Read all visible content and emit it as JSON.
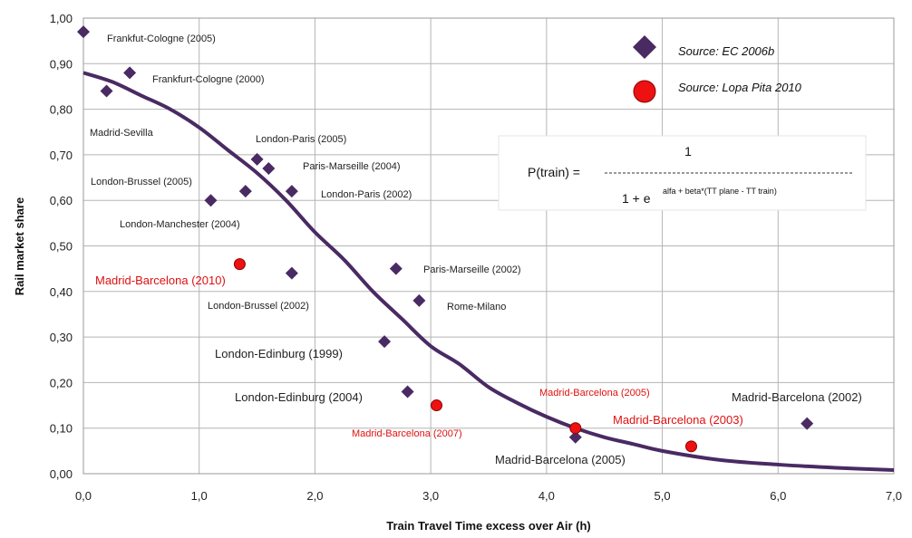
{
  "chart_data": {
    "type": "scatter",
    "title": "",
    "xlabel": "Train Travel Time excess over Air (h)",
    "ylabel": "Rail market share",
    "xlim": [
      0,
      7
    ],
    "ylim": [
      0,
      1
    ],
    "grid": true,
    "x_ticks": [
      "0,0",
      "1,0",
      "2,0",
      "3,0",
      "4,0",
      "5,0",
      "6,0",
      "7,0"
    ],
    "y_ticks": [
      "0,00",
      "0,10",
      "0,20",
      "0,30",
      "0,40",
      "0,50",
      "0,60",
      "0,70",
      "0,80",
      "0,90",
      "1,00"
    ],
    "legend_position": "top-right",
    "series": [
      {
        "name": "Source: EC 2006b",
        "marker": "diamond",
        "color": "#4a2a63",
        "points": [
          {
            "x": 0.0,
            "y": 0.97,
            "label": "Frankfut-Cologne (2005)"
          },
          {
            "x": 0.4,
            "y": 0.88,
            "label": "Frankfurt-Cologne (2000)"
          },
          {
            "x": 0.2,
            "y": 0.84,
            "label": "Madrid-Sevilla"
          },
          {
            "x": 1.5,
            "y": 0.69,
            "label": "London-Paris (2005)"
          },
          {
            "x": 1.6,
            "y": 0.67,
            "label": "Paris-Marseille (2004)"
          },
          {
            "x": 1.4,
            "y": 0.62,
            "label": "London-Brussel (2005)"
          },
          {
            "x": 1.8,
            "y": 0.62,
            "label": "London-Paris (2002)"
          },
          {
            "x": 1.1,
            "y": 0.6,
            "label": "London-Manchester (2004)"
          },
          {
            "x": 1.8,
            "y": 0.44,
            "label": "London-Brussel (2002)"
          },
          {
            "x": 2.7,
            "y": 0.45,
            "label": "Paris-Marseille (2002)"
          },
          {
            "x": 2.9,
            "y": 0.38,
            "label": "Rome-Milano"
          },
          {
            "x": 2.6,
            "y": 0.29,
            "label": "London-Edinburg (1999)"
          },
          {
            "x": 2.8,
            "y": 0.18,
            "label": "London-Edinburg (2004)"
          },
          {
            "x": 4.25,
            "y": 0.08,
            "label": "Madrid-Barcelona (2005)"
          },
          {
            "x": 6.25,
            "y": 0.11,
            "label": "Madrid-Barcelona (2002)"
          }
        ]
      },
      {
        "name": "Source: Lopa Pita 2010",
        "marker": "circle",
        "color": "#ee1111",
        "points": [
          {
            "x": 1.35,
            "y": 0.46,
            "label": "Madrid-Barcelona (2010)"
          },
          {
            "x": 3.05,
            "y": 0.15,
            "label": "Madrid-Barcelona (2007)"
          },
          {
            "x": 4.25,
            "y": 0.1,
            "label": "Madrid-Barcelona (2005)"
          },
          {
            "x": 5.25,
            "y": 0.06,
            "label": "Madrid-Barcelona (2003)"
          }
        ]
      }
    ],
    "curve": {
      "type": "logistic",
      "color": "#4a2a63",
      "points": [
        [
          0.0,
          0.88
        ],
        [
          0.25,
          0.86
        ],
        [
          0.5,
          0.83
        ],
        [
          0.75,
          0.8
        ],
        [
          1.0,
          0.76
        ],
        [
          1.25,
          0.71
        ],
        [
          1.5,
          0.66
        ],
        [
          1.75,
          0.6
        ],
        [
          2.0,
          0.53
        ],
        [
          2.25,
          0.47
        ],
        [
          2.5,
          0.4
        ],
        [
          2.75,
          0.34
        ],
        [
          3.0,
          0.28
        ],
        [
          3.25,
          0.24
        ],
        [
          3.5,
          0.19
        ],
        [
          3.75,
          0.155
        ],
        [
          4.0,
          0.125
        ],
        [
          4.25,
          0.1
        ],
        [
          4.5,
          0.08
        ],
        [
          4.75,
          0.065
        ],
        [
          5.0,
          0.05
        ],
        [
          5.5,
          0.03
        ],
        [
          6.0,
          0.02
        ],
        [
          6.5,
          0.013
        ],
        [
          7.0,
          0.008
        ]
      ]
    },
    "formula": {
      "lhs": "P(train) =",
      "numerator": "1",
      "denominator_base": "1 + e",
      "exponent": "alfa + beta*(TT plane - TT train)"
    }
  }
}
